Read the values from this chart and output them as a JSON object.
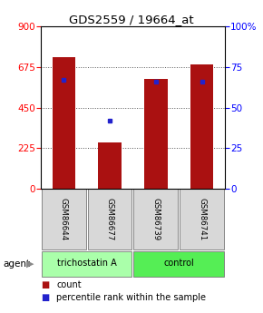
{
  "title": "GDS2559 / 19664_at",
  "samples": [
    "GSM86644",
    "GSM86677",
    "GSM86739",
    "GSM86741"
  ],
  "counts": [
    730,
    258,
    610,
    690
  ],
  "percentile_ranks": [
    67,
    42,
    66,
    66
  ],
  "ylim_left": [
    0,
    900
  ],
  "ylim_right": [
    0,
    100
  ],
  "yticks_left": [
    0,
    225,
    450,
    675,
    900
  ],
  "yticks_right": [
    0,
    25,
    50,
    75,
    100
  ],
  "bar_color": "#AA1111",
  "dot_color": "#2222CC",
  "agent_groups": [
    {
      "label": "trichostatin A",
      "indices": [
        0,
        1
      ],
      "color": "#aaffaa"
    },
    {
      "label": "control",
      "indices": [
        2,
        3
      ],
      "color": "#55ee55"
    }
  ],
  "legend_count_label": "count",
  "legend_pct_label": "percentile rank within the sample",
  "agent_label": "agent",
  "background_plot": "#ffffff",
  "sample_box_color": "#d8d8d8"
}
